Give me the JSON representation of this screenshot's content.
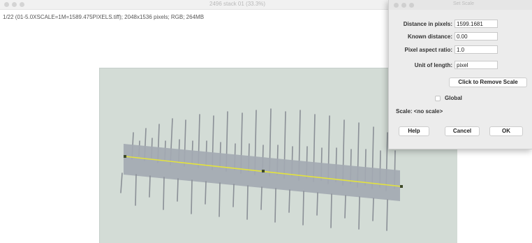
{
  "window": {
    "title": "2496 stack 01 (33.3%)",
    "subtitle": "1/22 (01-5.0XSCALE=1M=1589.475PIXELS.tiff); 2048x1536 pixels; RGB; 264MB"
  },
  "dialog": {
    "title": "Set Scale",
    "fields": [
      {
        "label": "Distance in pixels:",
        "value": "1599.1681"
      },
      {
        "label": "Known distance:",
        "value": "0.00"
      },
      {
        "label": "Pixel aspect ratio:",
        "value": "1.0"
      },
      {
        "label": "Unit of length:",
        "value": "pixel"
      }
    ],
    "remove_scale_label": "Click to Remove Scale",
    "global_label": "Global",
    "global_checked": false,
    "scale_text": "Scale: <no scale>",
    "help_label": "Help",
    "cancel_label": "Cancel",
    "ok_label": "OK"
  },
  "colors": {
    "selection_line": "#e4e33c",
    "ruler_band": "#a3a9b2",
    "background": "#d3dcd6"
  }
}
